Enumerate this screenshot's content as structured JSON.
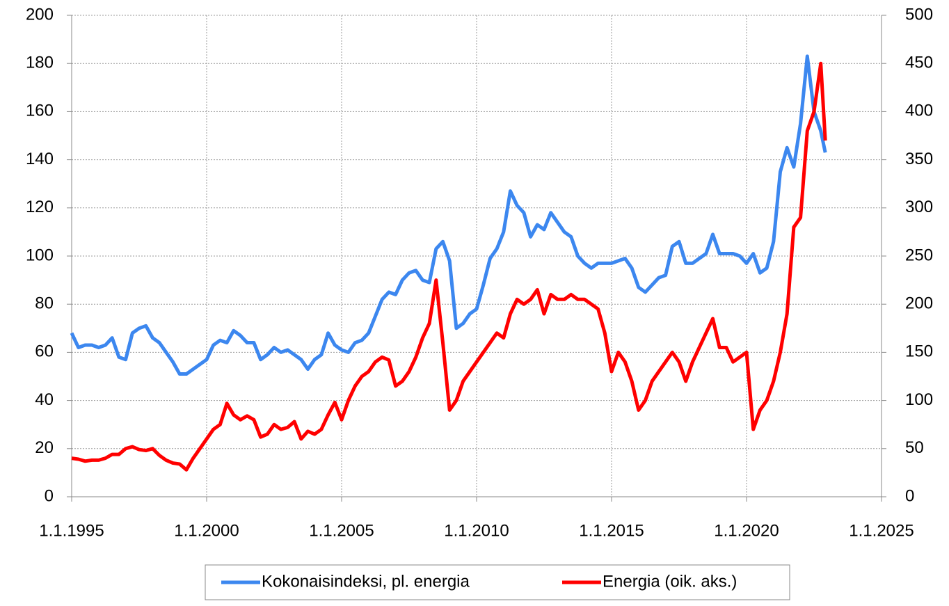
{
  "chart_data": {
    "type": "line",
    "x": [
      1995,
      1995.25,
      1995.5,
      1995.75,
      1996,
      1996.25,
      1996.5,
      1996.75,
      1997,
      1997.25,
      1997.5,
      1997.75,
      1998,
      1998.25,
      1998.5,
      1998.75,
      1999,
      1999.25,
      1999.5,
      1999.75,
      2000,
      2000.25,
      2000.5,
      2000.75,
      2001,
      2001.25,
      2001.5,
      2001.75,
      2002,
      2002.25,
      2002.5,
      2002.75,
      2003,
      2003.25,
      2003.5,
      2003.75,
      2004,
      2004.25,
      2004.5,
      2004.75,
      2005,
      2005.25,
      2005.5,
      2005.75,
      2006,
      2006.25,
      2006.5,
      2006.75,
      2007,
      2007.25,
      2007.5,
      2007.75,
      2008,
      2008.25,
      2008.5,
      2008.75,
      2009,
      2009.25,
      2009.5,
      2009.75,
      2010,
      2010.25,
      2010.5,
      2010.75,
      2011,
      2011.25,
      2011.5,
      2011.75,
      2012,
      2012.25,
      2012.5,
      2012.75,
      2013,
      2013.25,
      2013.5,
      2013.75,
      2014,
      2014.25,
      2014.5,
      2014.75,
      2015,
      2015.25,
      2015.5,
      2015.75,
      2016,
      2016.25,
      2016.5,
      2016.75,
      2017,
      2017.25,
      2017.5,
      2017.75,
      2018,
      2018.25,
      2018.5,
      2018.75,
      2019,
      2019.25,
      2019.5,
      2019.75,
      2020,
      2020.25,
      2020.5,
      2020.75,
      2021,
      2021.25,
      2021.5,
      2021.75,
      2022,
      2022.25,
      2022.5,
      2022.75,
      2022.917
    ],
    "series": [
      {
        "name": "Kokonaisindeksi, pl. energia",
        "color": "#3c87ef",
        "axis": "y",
        "values": [
          68,
          62,
          63,
          63,
          62,
          63,
          66,
          58,
          57,
          68,
          70,
          71,
          66,
          64,
          60,
          56,
          51,
          51,
          53,
          55,
          57,
          63,
          65,
          64,
          69,
          67,
          64,
          64,
          57,
          59,
          62,
          60,
          61,
          59,
          57,
          53,
          57,
          59,
          68,
          63,
          61,
          60,
          64,
          65,
          68,
          75,
          82,
          85,
          84,
          90,
          93,
          94,
          90,
          89,
          103,
          106,
          98,
          70,
          72,
          76,
          78,
          88,
          99,
          103,
          110,
          127,
          121,
          118,
          108,
          113,
          111,
          118,
          114,
          110,
          108,
          100,
          97,
          95,
          97,
          97,
          97,
          98,
          99,
          95,
          87,
          85,
          88,
          91,
          92,
          104,
          106,
          97,
          97,
          99,
          101,
          109,
          101,
          101,
          101,
          100,
          97,
          101,
          93,
          95,
          106,
          135,
          145,
          137,
          155,
          183,
          160,
          152,
          143
        ]
      },
      {
        "name": "Energia (oik. aks.)",
        "color": "#ff0000",
        "axis": "y2",
        "values": [
          40,
          39,
          37,
          38,
          38,
          40,
          44,
          44,
          50,
          52,
          49,
          48,
          50,
          43,
          38,
          35,
          34,
          28,
          40,
          50,
          60,
          70,
          75,
          97,
          85,
          80,
          84,
          80,
          62,
          65,
          75,
          70,
          72,
          78,
          60,
          68,
          65,
          70,
          85,
          98,
          80,
          100,
          115,
          125,
          130,
          140,
          145,
          142,
          115,
          120,
          130,
          145,
          165,
          180,
          225,
          160,
          90,
          100,
          120,
          130,
          140,
          150,
          160,
          170,
          165,
          190,
          205,
          200,
          205,
          215,
          190,
          210,
          205,
          205,
          210,
          205,
          205,
          200,
          195,
          170,
          130,
          150,
          140,
          120,
          90,
          100,
          120,
          130,
          140,
          150,
          140,
          120,
          140,
          155,
          170,
          185,
          155,
          155,
          140,
          145,
          150,
          70,
          90,
          100,
          120,
          150,
          190,
          280,
          290,
          380,
          400,
          450,
          370
        ]
      }
    ],
    "xlim": [
      1995,
      2025
    ],
    "xticks": [
      {
        "value": 1995,
        "label": "1.1.1995"
      },
      {
        "value": 2000,
        "label": "1.1.2000"
      },
      {
        "value": 2005,
        "label": "1.1.2005"
      },
      {
        "value": 2010,
        "label": "1.1.2010"
      },
      {
        "value": 2015,
        "label": "1.1.2015"
      },
      {
        "value": 2020,
        "label": "1.1.2020"
      },
      {
        "value": 2025,
        "label": "1.1.2025"
      }
    ],
    "ylim": [
      0,
      200
    ],
    "yticks": [
      0,
      20,
      40,
      60,
      80,
      100,
      120,
      140,
      160,
      180,
      200
    ],
    "y2lim": [
      0,
      500
    ],
    "y2ticks": [
      0,
      50,
      100,
      150,
      200,
      250,
      300,
      350,
      400,
      450,
      500
    ],
    "grid": true
  }
}
